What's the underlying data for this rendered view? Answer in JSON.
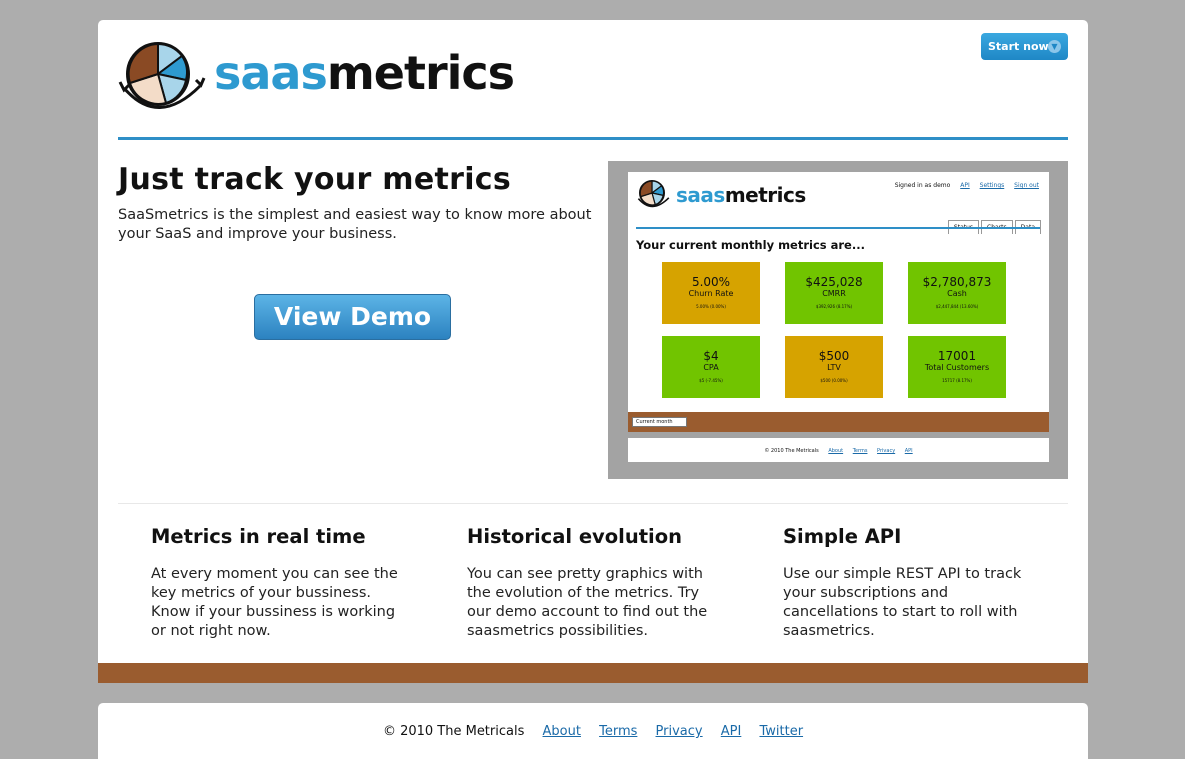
{
  "header": {
    "logo_part1": "saas",
    "logo_part2": "metrics",
    "start_button_label": "Start now!"
  },
  "hero": {
    "title": "Just track your metrics",
    "subtitle": "SaaSmetrics is the simplest and easiest way to know more about your SaaS and improve your business.",
    "demo_button_label": "View Demo"
  },
  "preview": {
    "logo_part1": "saas",
    "logo_part2": "metrics",
    "signed_in": "Signed in as demo",
    "nav": [
      "API",
      "Settings",
      "Sign out"
    ],
    "tabs": [
      "Status",
      "Charts",
      "Data"
    ],
    "heading": "Your current monthly metrics are...",
    "tiles": [
      {
        "value": "5.00%",
        "label": "Churn Rate",
        "sub": "5.00% (0.00%)",
        "color": "#d6a300"
      },
      {
        "value": "$425,028",
        "label": "CMRR",
        "sub": "$392,926 (8.17%)",
        "color": "#71c400"
      },
      {
        "value": "$2,780,873",
        "label": "Cash",
        "sub": "$2,447,844 (13.60%)",
        "color": "#71c400"
      },
      {
        "value": "$4",
        "label": "CPA",
        "sub": "$5 (-7.45%)",
        "color": "#71c400"
      },
      {
        "value": "$500",
        "label": "LTV",
        "sub": "$500 (0.00%)",
        "color": "#d6a300"
      },
      {
        "value": "17001",
        "label": "Total Customers",
        "sub": "15717 (8.17%)",
        "color": "#71c400"
      }
    ],
    "select_value": "Current month",
    "footer_copyright": "© 2010 The Metricals",
    "footer_links": [
      "About",
      "Terms",
      "Privacy",
      "API"
    ]
  },
  "features": [
    {
      "title": "Metrics in real time",
      "text": "At every moment you can see the key metrics of your bussiness. Know if your bussiness is working or not right now."
    },
    {
      "title": "Historical evolution",
      "text": "You can see pretty graphics with the evolution of the metrics. Try our demo account to find out the saasmetrics possibilities."
    },
    {
      "title": "Simple API",
      "text": "Use our simple REST API to track your subscriptions and cancellations to start to roll with saasmetrics."
    }
  ],
  "footer": {
    "copyright": "© 2010 The Metricals",
    "links": [
      "About",
      "Terms",
      "Privacy",
      "API",
      "Twitter"
    ]
  },
  "colors": {
    "accent": "#2e8fc7",
    "brown": "#9a5c2f",
    "background": "#adadad"
  }
}
